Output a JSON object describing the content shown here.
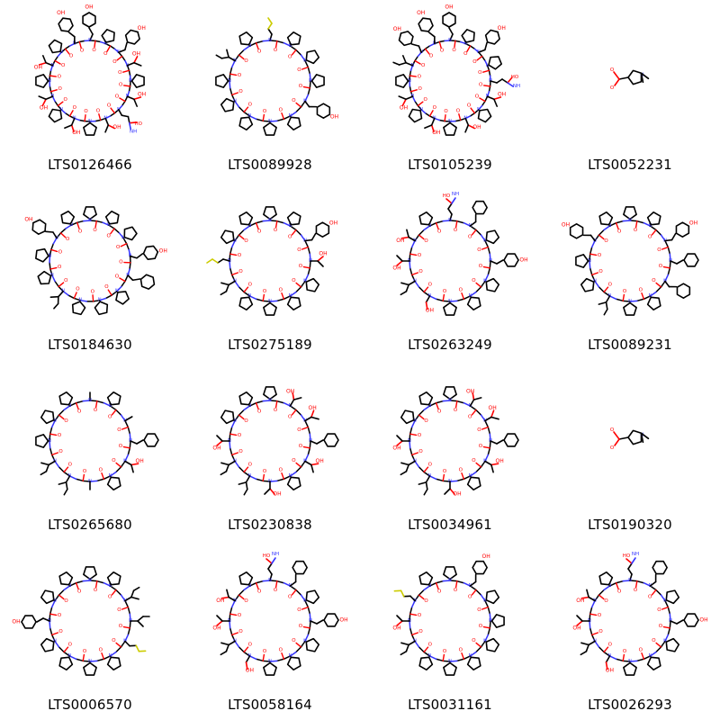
{
  "molecules": [
    {
      "id": "LTS0126466",
      "kind": "macrocycle",
      "residues": [
        "tyr",
        "pro",
        "tyr",
        "thr",
        "pro",
        "thr",
        "gln",
        "thr",
        "pro",
        "thr",
        "pro",
        "thr",
        "pro",
        "thr",
        "pro",
        "tyr"
      ]
    },
    {
      "id": "LTS0089928",
      "kind": "macrocycle",
      "residues": [
        "met",
        "pro",
        "pro",
        "pro",
        "tyr",
        "pro",
        "pro",
        "pro",
        "pro",
        "pro",
        "ile",
        "pro"
      ]
    },
    {
      "id": "LTS0105239",
      "kind": "macrocycle",
      "residues": [
        "tyr",
        "pro",
        "tyr",
        "pro",
        "gln",
        "thr",
        "pro",
        "thr",
        "pro",
        "thr",
        "pro",
        "thr",
        "pro",
        "ile",
        "tyr",
        "tyr"
      ]
    },
    {
      "id": "LTS0052231",
      "kind": "small"
    },
    {
      "id": "LTS0184630",
      "kind": "macrocycle",
      "residues": [
        "pro",
        "pro",
        "pro",
        "tyr",
        "phe",
        "pro",
        "pro",
        "pro",
        "leu",
        "pro",
        "pro",
        "tyr",
        "pro"
      ]
    },
    {
      "id": "LTS0275189",
      "kind": "macrocycle",
      "residues": [
        "pro",
        "pro",
        "tyr",
        "thr",
        "pro",
        "pro",
        "pro",
        "pro",
        "ile",
        "met",
        "pro",
        "pro"
      ]
    },
    {
      "id": "LTS0263249",
      "kind": "macrocycle",
      "residues": [
        "gln",
        "phe",
        "pro",
        "tyr",
        "pro",
        "pro",
        "pro",
        "ser",
        "ile",
        "thr",
        "thr",
        "pro"
      ]
    },
    {
      "id": "LTS0089231",
      "kind": "macrocycle",
      "residues": [
        "pro",
        "pro",
        "tyr",
        "phe",
        "phe",
        "pro",
        "pro",
        "leu",
        "pro",
        "pro",
        "tyr",
        "pro"
      ]
    },
    {
      "id": "LTS0265680",
      "kind": "macrocycle",
      "residues": [
        "ala",
        "pro",
        "ala",
        "phe",
        "thr",
        "pro",
        "ala",
        "ile",
        "ile",
        "pro",
        "pro",
        "pro"
      ]
    },
    {
      "id": "LTS0230838",
      "kind": "macrocycle",
      "residues": [
        "pro",
        "thr",
        "thr",
        "phe",
        "thr",
        "pro",
        "thr",
        "ile",
        "ile",
        "thr",
        "pro",
        "pro"
      ]
    },
    {
      "id": "LTS0034961",
      "kind": "macrocycle",
      "residues": [
        "pro",
        "thr",
        "thr",
        "phe",
        "thr",
        "pro",
        "thr",
        "ile",
        "ile",
        "thr",
        "pro",
        "pro"
      ]
    },
    {
      "id": "LTS0190320",
      "kind": "small"
    },
    {
      "id": "LTS0006570",
      "kind": "macrocycle",
      "residues": [
        "pro",
        "pro",
        "ile",
        "ile",
        "met",
        "pro",
        "pro",
        "pro",
        "pro",
        "tyr",
        "pro",
        "pro"
      ]
    },
    {
      "id": "LTS0058164",
      "kind": "macrocycle",
      "residues": [
        "gln",
        "phe",
        "pro",
        "tyr",
        "pro",
        "pro",
        "pro",
        "ser",
        "ile",
        "thr",
        "thr",
        "pro"
      ]
    },
    {
      "id": "LTS0031161",
      "kind": "macrocycle",
      "residues": [
        "pro",
        "tyr",
        "pro",
        "pro",
        "pro",
        "pro",
        "pro",
        "pro",
        "ile",
        "thr",
        "met",
        "pro"
      ]
    },
    {
      "id": "LTS0026293",
      "kind": "macrocycle",
      "residues": [
        "gln",
        "phe",
        "pro",
        "tyr",
        "pro",
        "pro",
        "pro",
        "ser",
        "ile",
        "thr",
        "thr",
        "pro"
      ]
    }
  ],
  "colors": {
    "bond": "#000000",
    "nitrogen": "#3333ff",
    "oxygen": "#ff0000",
    "sulfur": "#cccc00",
    "label": "#000000"
  }
}
